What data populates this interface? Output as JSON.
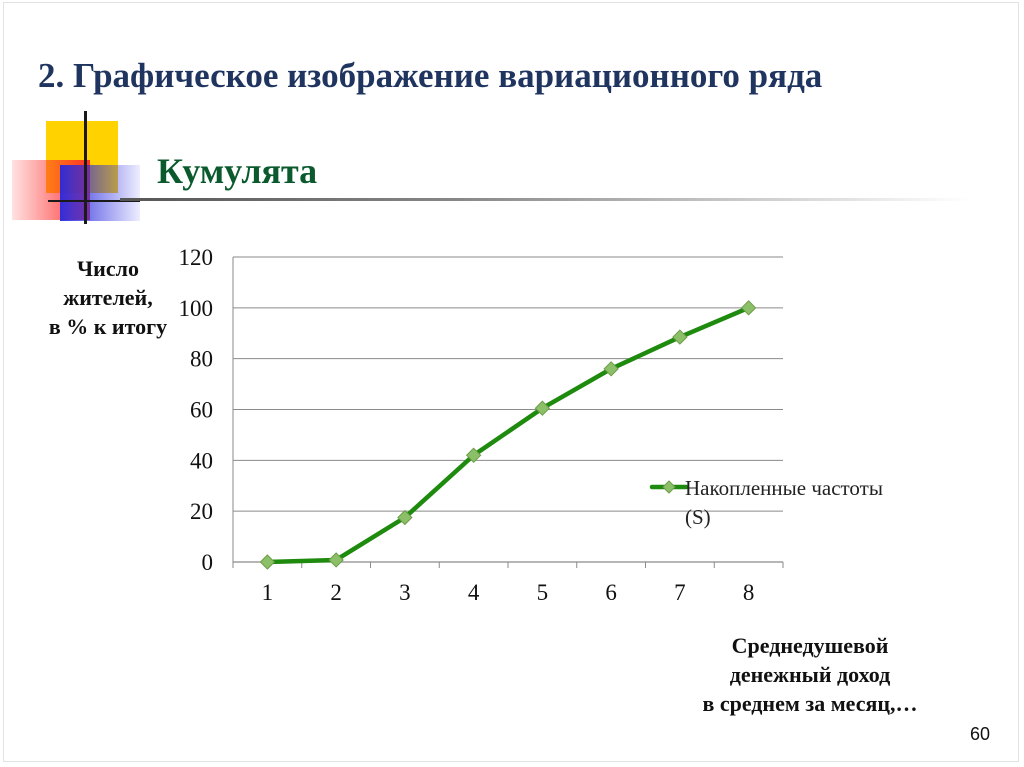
{
  "slide": {
    "title": "2. Графическое изображение вариационного ряда",
    "subtitle": "Кумулята",
    "y_label_lines": [
      "Число",
      "жителей,",
      "в % к итогу"
    ],
    "x_label_lines": [
      "Среднедушевой",
      "денежный доход",
      "в среднем за месяц,…"
    ],
    "page_number": "60"
  },
  "chart_data": {
    "type": "line",
    "title": "",
    "xlabel": "Среднедушевой денежный доход в среднем за месяц,…",
    "ylabel": "Число жителей, в % к итогу",
    "categories": [
      "1",
      "2",
      "3",
      "4",
      "5",
      "6",
      "7",
      "8"
    ],
    "series": [
      {
        "name": "Накопленные частоты (S)",
        "values": [
          0,
          0.8,
          17.5,
          42,
          60.5,
          76,
          88.5,
          100
        ],
        "color": "#1e8a0e",
        "marker_color": "#8cc068"
      }
    ],
    "yticks": [
      "0",
      "20",
      "40",
      "60",
      "80",
      "100",
      "120"
    ],
    "ylim": [
      0,
      120
    ],
    "grid": true,
    "legend": {
      "position": "right",
      "lines": [
        "Накопленные частоты",
        "(S)"
      ]
    }
  }
}
